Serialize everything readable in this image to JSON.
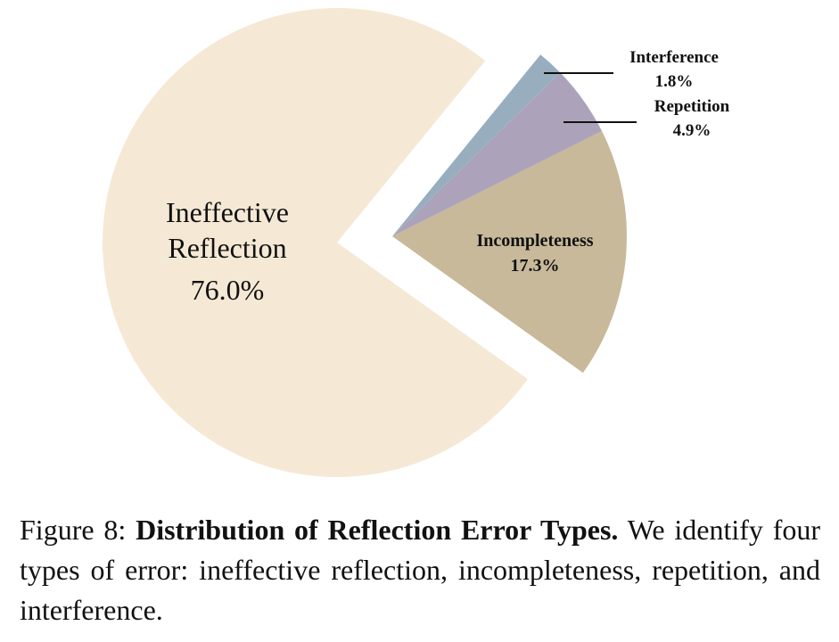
{
  "chart_data": {
    "type": "pie",
    "categories": [
      "Ineffective Reflection",
      "Incompleteness",
      "Repetition",
      "Interference"
    ],
    "values": [
      76.0,
      17.3,
      4.9,
      1.8
    ],
    "value_labels": [
      "76.0%",
      "17.3%",
      "4.9%",
      "1.8%"
    ],
    "colors": [
      "#f5e9d5",
      "#c8b99a",
      "#aca3bb",
      "#98aebf"
    ]
  },
  "caption": {
    "label": "Figure 8:",
    "title": "Distribution of Reflection Error Types.",
    "text": "We identify four types of error: ineffective reflection, incompleteness, repetition, and interference."
  }
}
